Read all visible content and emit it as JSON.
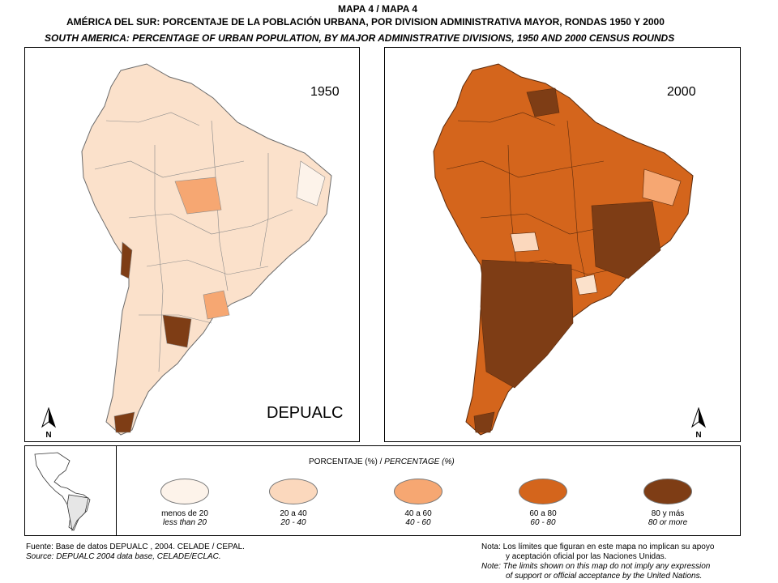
{
  "header": {
    "map_number": "MAPA 4 / MAPA 4",
    "title_es": "AMÉRICA DEL SUR: PORCENTAJE DE LA POBLACIÓN URBANA, POR DIVISION ADMINISTRATIVA MAYOR, RONDAS 1950 Y 2000",
    "title_en": "SOUTH AMERICA: PERCENTAGE OF URBAN POPULATION, BY MAJOR ADMINISTRATIVE DIVISIONS, 1950 AND 2000 CENSUS ROUNDS"
  },
  "maps": [
    {
      "year": "1950",
      "dominant_fill": "#fbe1cb"
    },
    {
      "year": "2000",
      "dominant_fill": "#d4651c"
    }
  ],
  "north_arrow": "N",
  "watermark": "DEPUALC",
  "legend": {
    "title_es": "PORCENTAJE (%) /",
    "title_en": "PERCENTAGE (%)",
    "classes": [
      {
        "label_es": "menos de 20",
        "label_en": "less than 20",
        "color": "#fdf3ea"
      },
      {
        "label_es": "20 a 40",
        "label_en": "20 -  40",
        "color": "#fbd8bd"
      },
      {
        "label_es": "40 a 60",
        "label_en": "40 - 60",
        "color": "#f6a772"
      },
      {
        "label_es": "60 a 80",
        "label_en": "60 - 80",
        "color": "#d4651c"
      },
      {
        "label_es": "80 y más",
        "label_en": "80 or more",
        "color": "#7e3d15"
      }
    ]
  },
  "footer": {
    "source_es": "Fuente: Base de datos DEPUALC , 2004. CELADE / CEPAL.",
    "source_en": "Source: DEPUALC 2004 data base, CELADE/ECLAC.",
    "note_es_1": "Nota: Los límites que figuran en este mapa no implican su apoyo",
    "note_es_2": "y aceptación oficial por las Naciones Unidas.",
    "note_en_1": "Note: The limits shown on this map do not imply any expression",
    "note_en_2": "of support or official acceptance by the United Nations."
  }
}
